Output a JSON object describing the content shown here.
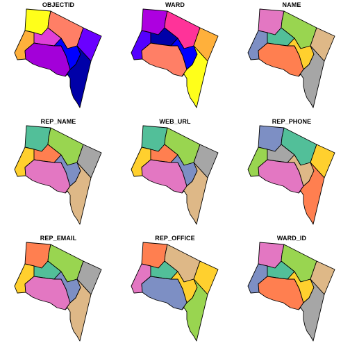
{
  "panels": [
    {
      "title": "OBJECTID",
      "colors": [
        "#FFFF1A",
        "#FF7F66",
        "#6A00FF",
        "#FFB03B",
        "#E03FD8",
        "#A300D9",
        "#0000FF",
        "#0000A8"
      ]
    },
    {
      "title": "WARD",
      "colors": [
        "#AD00E0",
        "#FF3399",
        "#FFB03B",
        "#5500FF",
        "#0000A8",
        "#FF7F66",
        "#0000FF",
        "#FFFF1A"
      ]
    },
    {
      "title": "NAME",
      "colors": [
        "#E377C2",
        "#99D550",
        "#DEB887",
        "#7D8FC4",
        "#52BF99",
        "#FF7F50",
        "#FFD02E",
        "#A6A6A6"
      ]
    },
    {
      "title": "REP_NAME",
      "colors": [
        "#52BF99",
        "#99D550",
        "#A6A6A6",
        "#FFD02E",
        "#FF7F50",
        "#E377C2",
        "#7D8FC4",
        "#DEB887"
      ]
    },
    {
      "title": "WEB_URL",
      "colors": [
        "#52BF99",
        "#99D550",
        "#A6A6A6",
        "#FFD02E",
        "#FF7F50",
        "#E377C2",
        "#7D8FC4",
        "#DEB887"
      ]
    },
    {
      "title": "REP_PHONE",
      "colors": [
        "#7D8FC4",
        "#52BF99",
        "#FFD02E",
        "#99D550",
        "#A6A6A6",
        "#E377C2",
        "#DEB887",
        "#FF7F50"
      ]
    },
    {
      "title": "REP_EMAIL",
      "colors": [
        "#FF7F50",
        "#99D550",
        "#A6A6A6",
        "#FFD02E",
        "#52BF99",
        "#E377C2",
        "#7D8FC4",
        "#DEB887"
      ]
    },
    {
      "title": "REP_OFFICE",
      "colors": [
        "#FF7F50",
        "#DEB887",
        "#FFD02E",
        "#E377C2",
        "#52BF99",
        "#7D8FC4",
        "#FFD02E",
        "#99D550"
      ]
    },
    {
      "title": "WARD_ID",
      "colors": [
        "#E377C2",
        "#99D550",
        "#DEB887",
        "#7D8FC4",
        "#52BF99",
        "#FF7F50",
        "#FFD02E",
        "#A6A6A6"
      ]
    }
  ]
}
